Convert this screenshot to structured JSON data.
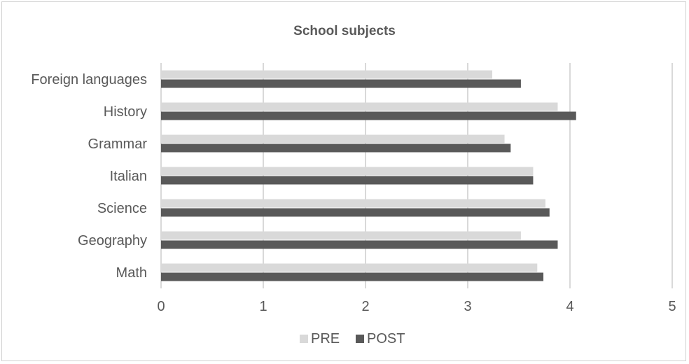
{
  "chart_data": {
    "type": "bar",
    "orientation": "horizontal",
    "title": "School subjects",
    "xlabel": "",
    "ylabel": "",
    "categories": [
      "Foreign languages",
      "History",
      "Grammar",
      "Italian",
      "Science",
      "Geography",
      "Math"
    ],
    "series": [
      {
        "name": "PRE",
        "color": "#d9d9d9",
        "values": [
          3.24,
          3.88,
          3.36,
          3.64,
          3.76,
          3.52,
          3.68
        ]
      },
      {
        "name": "POST",
        "color": "#595959",
        "values": [
          3.52,
          4.06,
          3.42,
          3.64,
          3.8,
          3.88,
          3.74
        ]
      }
    ],
    "xlim": [
      0,
      5
    ],
    "xticks": [
      "0",
      "1",
      "2",
      "3",
      "4",
      "5"
    ],
    "grid": "vertical",
    "legend": "bottom"
  }
}
